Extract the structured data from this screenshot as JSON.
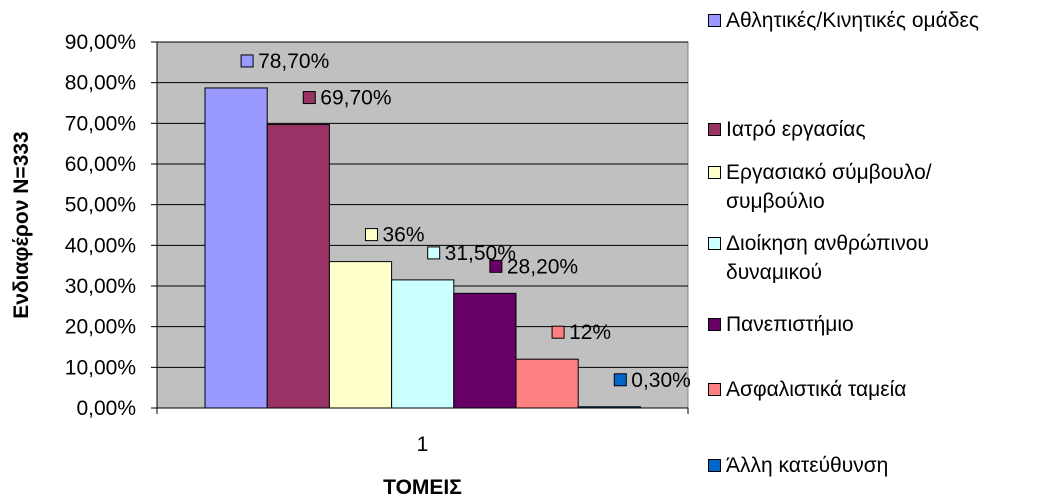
{
  "chart_data": {
    "type": "bar",
    "categories": [
      "1"
    ],
    "ylabel": "Ενδιαφέρον N=333",
    "xlabel": "ΤΟΜΕΙΣ",
    "ylim": [
      0,
      90
    ],
    "yticks": [
      "0,00%",
      "10,00%",
      "20,00%",
      "30,00%",
      "40,00%",
      "50,00%",
      "60,00%",
      "70,00%",
      "80,00%",
      "90,00%"
    ],
    "grid": true,
    "legend_position": "right",
    "series": [
      {
        "name": "Αθλητικές/Κινητικές ομάδες",
        "values": [
          78.7
        ],
        "label": "78,70%",
        "color": "#9999FF"
      },
      {
        "name": "Ιατρό εργασίας",
        "values": [
          69.7
        ],
        "label": "69,70%",
        "color": "#993366"
      },
      {
        "name": "Εργασιακό σύμβουλο/συμβούλιο",
        "values": [
          36
        ],
        "label": "36%",
        "color": "#FFFFCC"
      },
      {
        "name": "Διοίκηση ανθρώπινου δυναμικού",
        "values": [
          31.5
        ],
        "label": "31,50%",
        "color": "#CCFFFF"
      },
      {
        "name": "Πανεπιστήμιο",
        "values": [
          28.2
        ],
        "label": "28,20%",
        "color": "#660066"
      },
      {
        "name": "Ασφαλιστικά ταμεία",
        "values": [
          12
        ],
        "label": "12%",
        "color": "#FF8080"
      },
      {
        "name": "Άλλη κατεύθυνση",
        "values": [
          0.3
        ],
        "label": "0,30%",
        "color": "#0066CC"
      }
    ],
    "plot_background": "#C0C0C0"
  }
}
